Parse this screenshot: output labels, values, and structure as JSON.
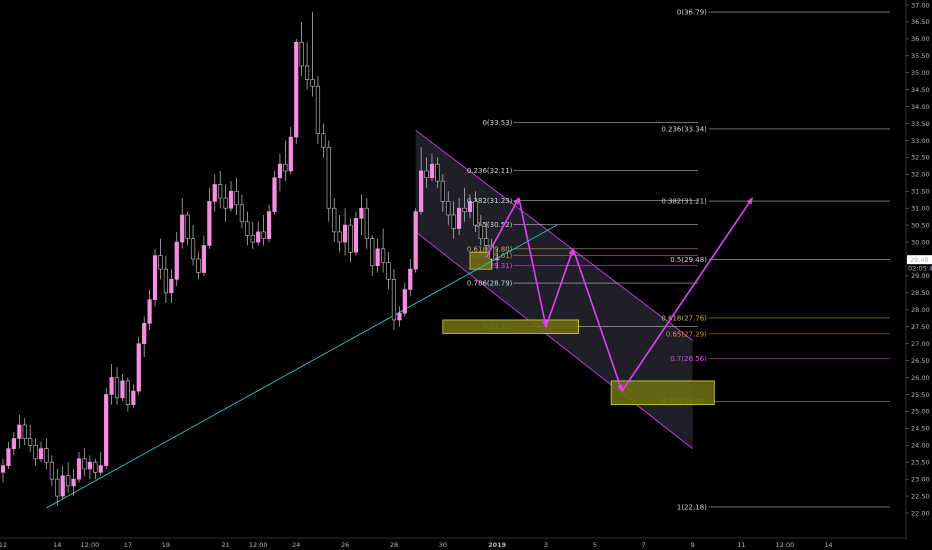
{
  "chart_data": {
    "type": "candlestick",
    "title": "",
    "xlabel": "",
    "ylabel": "",
    "y_range": [
      21.7,
      37.2
    ],
    "y_ticks": [
      "37.00",
      "36.50",
      "36.00",
      "35.50",
      "35.00",
      "34.50",
      "34.00",
      "33.50",
      "33.00",
      "32.50",
      "32.00",
      "31.50",
      "31.00",
      "30.50",
      "30.00",
      "29.50",
      "29.00",
      "28.50",
      "28.00",
      "27.50",
      "27.00",
      "26.50",
      "26.00",
      "25.50",
      "25.00",
      "24.50",
      "24.00",
      "23.50",
      "23.00",
      "22.50",
      "22.00"
    ],
    "y_tick_values": [
      37.0,
      36.5,
      36.0,
      35.5,
      35.0,
      34.5,
      34.0,
      33.5,
      33.0,
      32.5,
      32.0,
      31.5,
      31.0,
      30.5,
      30.0,
      29.5,
      29.0,
      28.5,
      28.0,
      27.5,
      27.0,
      26.5,
      26.0,
      25.5,
      25.0,
      24.5,
      24.0,
      23.5,
      23.0,
      22.5,
      22.0
    ],
    "x_ticks": [
      "12",
      "14",
      "12:00",
      "17",
      "19",
      "21",
      "12:00",
      "24",
      "26",
      "28",
      "30",
      "2019",
      "3",
      "5",
      "7",
      "9",
      "11",
      "12:00",
      "14"
    ],
    "x_tick_index": [
      0,
      10,
      16,
      23,
      30,
      41,
      47,
      54,
      63,
      72,
      81,
      91,
      100,
      109,
      118,
      127,
      136,
      144,
      152
    ],
    "price_label": "29.48",
    "price_value": 29.48,
    "countdown_label": "02:05:40",
    "candles": [
      {
        "o": 23.2,
        "h": 23.6,
        "l": 22.9,
        "c": 23.4
      },
      {
        "o": 23.4,
        "h": 24.1,
        "l": 23.3,
        "c": 23.9
      },
      {
        "o": 23.9,
        "h": 24.4,
        "l": 23.7,
        "c": 24.2
      },
      {
        "o": 24.2,
        "h": 24.9,
        "l": 23.9,
        "c": 24.6
      },
      {
        "o": 24.6,
        "h": 24.8,
        "l": 24.0,
        "c": 24.2
      },
      {
        "o": 24.2,
        "h": 24.6,
        "l": 23.8,
        "c": 24.0
      },
      {
        "o": 24.0,
        "h": 24.2,
        "l": 23.4,
        "c": 23.6
      },
      {
        "o": 23.6,
        "h": 24.1,
        "l": 23.5,
        "c": 23.9
      },
      {
        "o": 23.9,
        "h": 24.2,
        "l": 23.3,
        "c": 23.5
      },
      {
        "o": 23.5,
        "h": 23.7,
        "l": 22.8,
        "c": 23.0
      },
      {
        "o": 23.0,
        "h": 23.3,
        "l": 22.2,
        "c": 22.5
      },
      {
        "o": 22.5,
        "h": 23.4,
        "l": 22.4,
        "c": 23.1
      },
      {
        "o": 23.1,
        "h": 23.5,
        "l": 22.6,
        "c": 22.8
      },
      {
        "o": 22.8,
        "h": 23.3,
        "l": 22.5,
        "c": 23.0
      },
      {
        "o": 23.0,
        "h": 23.8,
        "l": 22.9,
        "c": 23.6
      },
      {
        "o": 23.6,
        "h": 23.9,
        "l": 23.1,
        "c": 23.3
      },
      {
        "o": 23.3,
        "h": 23.7,
        "l": 23.0,
        "c": 23.5
      },
      {
        "o": 23.5,
        "h": 23.6,
        "l": 23.0,
        "c": 23.2
      },
      {
        "o": 23.2,
        "h": 23.8,
        "l": 23.1,
        "c": 23.4
      },
      {
        "o": 23.4,
        "h": 25.7,
        "l": 23.3,
        "c": 25.5
      },
      {
        "o": 25.5,
        "h": 26.4,
        "l": 25.2,
        "c": 26.0
      },
      {
        "o": 26.0,
        "h": 26.3,
        "l": 25.2,
        "c": 25.4
      },
      {
        "o": 25.4,
        "h": 26.1,
        "l": 25.3,
        "c": 25.9
      },
      {
        "o": 25.9,
        "h": 26.0,
        "l": 25.0,
        "c": 25.2
      },
      {
        "o": 25.2,
        "h": 25.8,
        "l": 25.1,
        "c": 25.6
      },
      {
        "o": 25.6,
        "h": 27.2,
        "l": 25.5,
        "c": 27.0
      },
      {
        "o": 27.0,
        "h": 27.8,
        "l": 26.6,
        "c": 27.6
      },
      {
        "o": 27.6,
        "h": 28.6,
        "l": 27.4,
        "c": 28.3
      },
      {
        "o": 28.3,
        "h": 29.8,
        "l": 28.1,
        "c": 29.6
      },
      {
        "o": 29.6,
        "h": 30.1,
        "l": 28.9,
        "c": 29.2
      },
      {
        "o": 29.2,
        "h": 29.6,
        "l": 28.2,
        "c": 28.5
      },
      {
        "o": 28.5,
        "h": 29.2,
        "l": 28.2,
        "c": 28.9
      },
      {
        "o": 28.9,
        "h": 30.3,
        "l": 28.7,
        "c": 30.0
      },
      {
        "o": 30.0,
        "h": 31.3,
        "l": 29.8,
        "c": 30.8
      },
      {
        "o": 30.8,
        "h": 30.9,
        "l": 29.9,
        "c": 30.1
      },
      {
        "o": 30.1,
        "h": 30.5,
        "l": 29.3,
        "c": 29.5
      },
      {
        "o": 29.5,
        "h": 29.7,
        "l": 28.9,
        "c": 29.1
      },
      {
        "o": 29.1,
        "h": 30.2,
        "l": 29.0,
        "c": 29.9
      },
      {
        "o": 29.9,
        "h": 31.6,
        "l": 29.8,
        "c": 31.2
      },
      {
        "o": 31.2,
        "h": 32.0,
        "l": 30.9,
        "c": 31.7
      },
      {
        "o": 31.7,
        "h": 32.1,
        "l": 31.0,
        "c": 31.3
      },
      {
        "o": 31.3,
        "h": 31.7,
        "l": 30.6,
        "c": 31.0
      },
      {
        "o": 31.0,
        "h": 31.8,
        "l": 30.9,
        "c": 31.5
      },
      {
        "o": 31.5,
        "h": 31.9,
        "l": 30.8,
        "c": 31.1
      },
      {
        "o": 31.1,
        "h": 31.4,
        "l": 30.4,
        "c": 30.6
      },
      {
        "o": 30.6,
        "h": 30.9,
        "l": 29.9,
        "c": 30.2
      },
      {
        "o": 30.2,
        "h": 30.6,
        "l": 29.8,
        "c": 30.0
      },
      {
        "o": 30.0,
        "h": 30.6,
        "l": 29.9,
        "c": 30.3
      },
      {
        "o": 30.3,
        "h": 30.8,
        "l": 29.9,
        "c": 30.1
      },
      {
        "o": 30.1,
        "h": 31.1,
        "l": 30.0,
        "c": 30.9
      },
      {
        "o": 30.9,
        "h": 32.1,
        "l": 30.8,
        "c": 31.9
      },
      {
        "o": 31.9,
        "h": 32.6,
        "l": 31.5,
        "c": 32.3
      },
      {
        "o": 32.3,
        "h": 33.0,
        "l": 31.8,
        "c": 32.1
      },
      {
        "o": 32.1,
        "h": 33.4,
        "l": 32.0,
        "c": 33.1
      },
      {
        "o": 33.1,
        "h": 36.0,
        "l": 32.9,
        "c": 35.9
      },
      {
        "o": 35.9,
        "h": 36.5,
        "l": 34.9,
        "c": 35.2
      },
      {
        "o": 35.2,
        "h": 35.9,
        "l": 34.5,
        "c": 34.8
      },
      {
        "o": 34.8,
        "h": 36.8,
        "l": 34.3,
        "c": 34.6
      },
      {
        "o": 34.6,
        "h": 34.9,
        "l": 32.9,
        "c": 33.2
      },
      {
        "o": 33.2,
        "h": 33.5,
        "l": 32.5,
        "c": 32.8
      },
      {
        "o": 32.8,
        "h": 33.0,
        "l": 30.6,
        "c": 31.0
      },
      {
        "o": 31.0,
        "h": 31.3,
        "l": 30.0,
        "c": 30.3
      },
      {
        "o": 30.3,
        "h": 30.8,
        "l": 29.7,
        "c": 30.0
      },
      {
        "o": 30.0,
        "h": 31.0,
        "l": 29.6,
        "c": 30.5
      },
      {
        "o": 30.5,
        "h": 30.7,
        "l": 29.4,
        "c": 29.7
      },
      {
        "o": 29.7,
        "h": 30.9,
        "l": 29.6,
        "c": 30.7
      },
      {
        "o": 30.7,
        "h": 31.4,
        "l": 30.2,
        "c": 31.0
      },
      {
        "o": 31.0,
        "h": 31.3,
        "l": 29.8,
        "c": 30.1
      },
      {
        "o": 30.1,
        "h": 30.2,
        "l": 29.0,
        "c": 29.3
      },
      {
        "o": 29.3,
        "h": 30.1,
        "l": 29.1,
        "c": 29.8
      },
      {
        "o": 29.8,
        "h": 30.4,
        "l": 29.1,
        "c": 29.4
      },
      {
        "o": 29.4,
        "h": 29.7,
        "l": 28.6,
        "c": 28.9
      },
      {
        "o": 28.9,
        "h": 29.2,
        "l": 27.4,
        "c": 27.7
      },
      {
        "o": 27.7,
        "h": 28.1,
        "l": 27.5,
        "c": 27.9
      },
      {
        "o": 27.9,
        "h": 28.8,
        "l": 27.8,
        "c": 28.6
      },
      {
        "o": 28.6,
        "h": 29.5,
        "l": 28.4,
        "c": 29.2
      },
      {
        "o": 29.2,
        "h": 31.0,
        "l": 29.1,
        "c": 30.9
      },
      {
        "o": 30.9,
        "h": 32.8,
        "l": 30.8,
        "c": 32.1
      },
      {
        "o": 32.1,
        "h": 32.5,
        "l": 31.6,
        "c": 31.9
      },
      {
        "o": 31.9,
        "h": 32.6,
        "l": 31.8,
        "c": 32.3
      },
      {
        "o": 32.3,
        "h": 32.5,
        "l": 31.6,
        "c": 31.8
      },
      {
        "o": 31.8,
        "h": 32.0,
        "l": 30.9,
        "c": 31.2
      },
      {
        "o": 31.2,
        "h": 31.5,
        "l": 30.5,
        "c": 30.8
      },
      {
        "o": 30.8,
        "h": 31.2,
        "l": 30.1,
        "c": 30.4
      },
      {
        "o": 30.4,
        "h": 31.3,
        "l": 30.2,
        "c": 31.0
      },
      {
        "o": 31.0,
        "h": 31.6,
        "l": 30.6,
        "c": 30.9
      },
      {
        "o": 30.9,
        "h": 31.4,
        "l": 30.7,
        "c": 31.2
      },
      {
        "o": 31.2,
        "h": 31.5,
        "l": 30.3,
        "c": 30.5
      },
      {
        "o": 30.5,
        "h": 30.8,
        "l": 29.9,
        "c": 30.1
      },
      {
        "o": 30.1,
        "h": 30.6,
        "l": 29.7,
        "c": 29.9
      },
      {
        "o": 29.9,
        "h": 30.1,
        "l": 29.3,
        "c": 29.5
      },
      {
        "o": 29.5,
        "h": 29.8,
        "l": 29.2,
        "c": 29.5
      }
    ],
    "trendline": {
      "from": {
        "index": 8,
        "price": 22.15
      },
      "to": {
        "index": 102,
        "price": 30.5
      }
    },
    "channel": {
      "upper": {
        "from": {
          "index": 76,
          "price": 33.3
        },
        "to": {
          "index": 127,
          "price": 27.1
        }
      },
      "lower": {
        "from": {
          "index": 76,
          "price": 30.3
        },
        "to": {
          "index": 127,
          "price": 23.9
        }
      }
    },
    "fib_left": {
      "levels": [
        {
          "label": "0(33.53)",
          "price": 33.53,
          "color": "#d1d4dc"
        },
        {
          "label": "0.236(32.11)",
          "price": 32.11,
          "color": "#d1d4dc"
        },
        {
          "label": "0.382(31.23)",
          "price": 31.23,
          "color": "#d1d4dc"
        },
        {
          "label": "0.5(30.52)",
          "price": 30.52,
          "color": "#d1d4dc"
        },
        {
          "label": "0.618(29.80)",
          "price": 29.8,
          "color": "#c9b458"
        },
        {
          "label": "0.65(29.61)",
          "price": 29.61,
          "color": "#d08b3b"
        },
        {
          "label": "0.7(29.31)",
          "price": 29.31,
          "color": "#e040fb"
        },
        {
          "label": "0.786(28.79)",
          "price": 28.79,
          "color": "#d1d4dc"
        },
        {
          "label": "1(27.50)",
          "price": 27.5,
          "color": "#d1d4dc"
        }
      ]
    },
    "fib_right": {
      "levels": [
        {
          "label": "0(36.79)",
          "price": 36.79,
          "color": "#d1d4dc"
        },
        {
          "label": "0.236(33.34)",
          "price": 33.34,
          "color": "#d1d4dc"
        },
        {
          "label": "0.382(31.21)",
          "price": 31.21,
          "color": "#d1d4dc"
        },
        {
          "label": "0.5(29.48)",
          "price": 29.48,
          "color": "#d1d4dc"
        },
        {
          "label": "0.618(27.76)",
          "price": 27.76,
          "color": "#c9b458"
        },
        {
          "label": "0.65(27.29)",
          "price": 27.29,
          "color": "#d08b3b"
        },
        {
          "label": "0.7(26.56)",
          "price": 26.56,
          "color": "#e040fb"
        },
        {
          "label": "0.786(25.30)",
          "price": 25.3,
          "color": "#d1d4dc"
        },
        {
          "label": "1(22.18)",
          "price": 22.18,
          "color": "#d1d4dc"
        }
      ]
    },
    "zones": [
      {
        "from_index": 86,
        "to_index": 90,
        "top": 29.7,
        "bottom": 29.2
      },
      {
        "from_index": 81,
        "to_index": 106,
        "top": 27.7,
        "bottom": 27.3
      },
      {
        "from_index": 112,
        "to_index": 131,
        "top": 25.9,
        "bottom": 25.2
      }
    ],
    "projection_path": [
      {
        "index": 89,
        "price": 29.55
      },
      {
        "index": 95,
        "price": 31.3
      },
      {
        "index": 100,
        "price": 27.5
      },
      {
        "index": 105,
        "price": 29.8
      },
      {
        "index": 114,
        "price": 25.6
      },
      {
        "index": 138,
        "price": 31.3
      }
    ],
    "colors": {
      "background": "#000000",
      "candle": "#f48fe0",
      "wick": "#c8c8c8",
      "trendline": "#26c6c6",
      "channel": "#e040fb",
      "arrows": "#e040fb",
      "zone_fill": "#6b6b12",
      "zone_border": "#d4d44a",
      "price_label_bg": "#ffffff"
    }
  }
}
